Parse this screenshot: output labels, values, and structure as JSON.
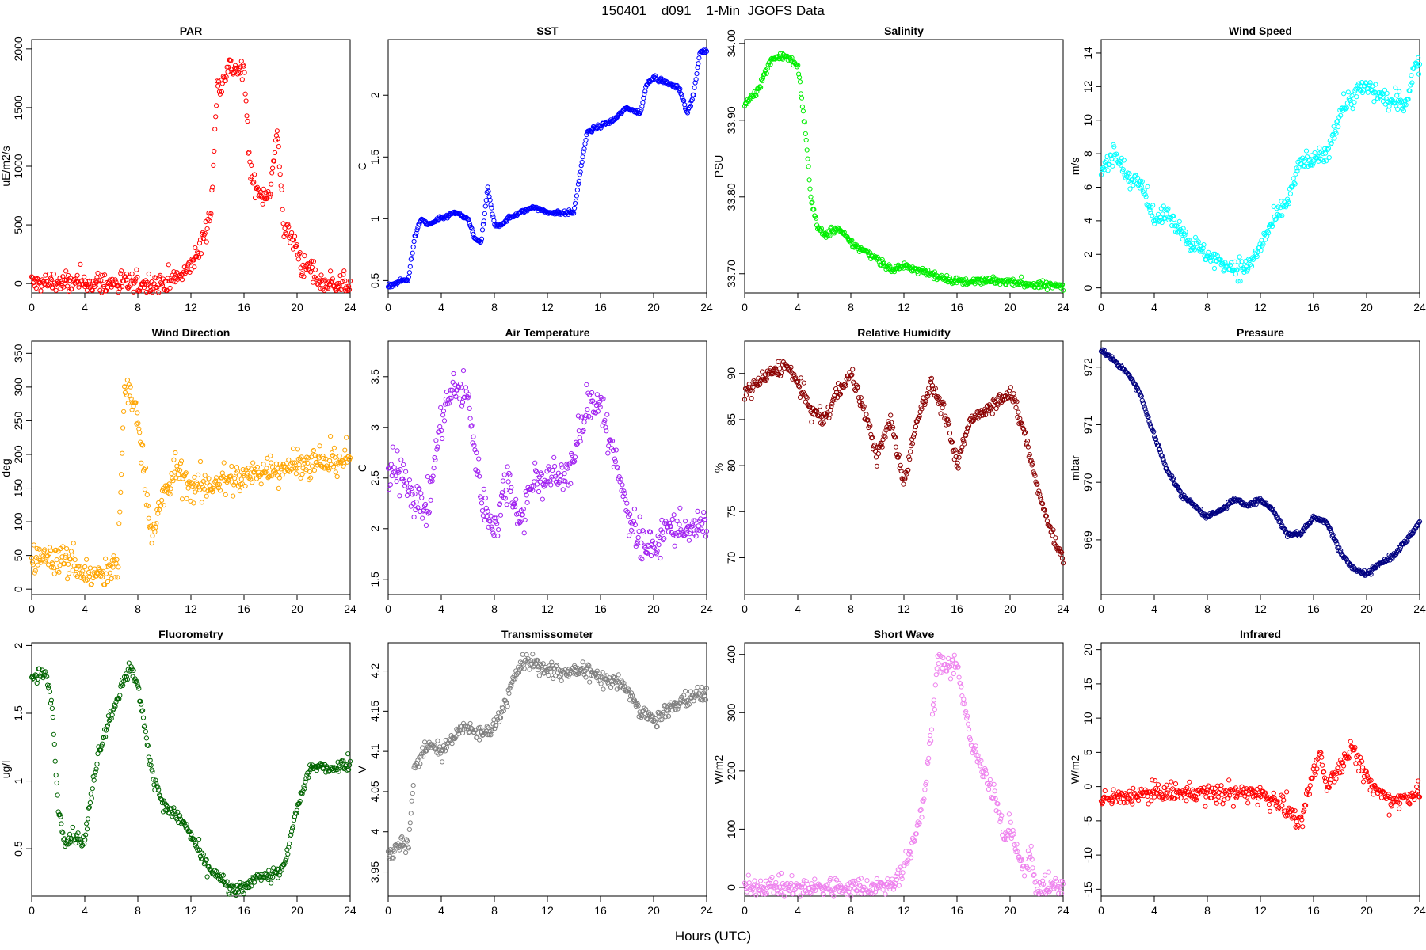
{
  "figure": {
    "title": "150401    d091    1-Min  JGOFS Data",
    "xlabel": "Hours (UTC)"
  },
  "chart_data": [
    {
      "type": "scatter",
      "title": "PAR",
      "ylabel": "uE/m2/s",
      "color": "#ff0000",
      "xlim": [
        0,
        24
      ],
      "xticks": [
        0,
        4,
        8,
        12,
        16,
        20,
        24
      ],
      "ylim": [
        -80,
        2080
      ],
      "yticks": [
        0,
        500,
        1000,
        1500,
        2000
      ],
      "grid": false,
      "series": [
        {
          "spread": 250,
          "x": [
            0,
            10,
            10.5,
            11.5,
            12.5,
            13.5,
            14,
            15,
            16,
            16.5,
            17,
            17.5,
            18,
            18.5,
            19,
            19.5,
            20,
            20.5,
            21,
            21.5,
            22,
            24
          ],
          "y": [
            0,
            0,
            20,
            80,
            250,
            600,
            1700,
            1850,
            1800,
            900,
            800,
            750,
            800,
            1300,
            500,
            400,
            300,
            100,
            150,
            20,
            0,
            0
          ]
        }
      ]
    },
    {
      "type": "scatter",
      "title": "SST",
      "ylabel": "C",
      "color": "#0000ff",
      "xlim": [
        0,
        24
      ],
      "xticks": [
        0,
        4,
        8,
        12,
        16,
        20,
        24
      ],
      "ylim": [
        0.4,
        2.45
      ],
      "yticks": [
        0.5,
        1.0,
        1.5,
        2.0
      ],
      "grid": false,
      "series": [
        {
          "spread": 0.04,
          "x": [
            0,
            1,
            1.5,
            2,
            2.5,
            3,
            4,
            5,
            6,
            6.5,
            7,
            7.5,
            8,
            8.5,
            9,
            10,
            11,
            12,
            13,
            14,
            14.5,
            15,
            16,
            17,
            18,
            19,
            19.5,
            20,
            21,
            22,
            22.5,
            23,
            23.5,
            24
          ],
          "y": [
            0.45,
            0.5,
            0.5,
            0.85,
            1.0,
            0.95,
            1.0,
            1.05,
            1.0,
            0.85,
            0.8,
            1.25,
            0.95,
            0.95,
            1.0,
            1.05,
            1.1,
            1.05,
            1.05,
            1.05,
            1.4,
            1.7,
            1.75,
            1.8,
            1.9,
            1.85,
            2.1,
            2.15,
            2.1,
            2.05,
            1.85,
            2.0,
            2.35,
            2.35
          ]
        }
      ]
    },
    {
      "type": "scatter",
      "title": "Salinity",
      "ylabel": "PSU",
      "color": "#00ee00",
      "xlim": [
        0,
        24
      ],
      "xticks": [
        0,
        4,
        8,
        12,
        16,
        20,
        24
      ],
      "ylim": [
        33.675,
        34.005
      ],
      "yticks": [
        33.7,
        33.8,
        33.9,
        34.0
      ],
      "ytick_labels": [
        "33.70",
        "33.80",
        "33.90",
        "34.00"
      ],
      "grid": false,
      "series": [
        {
          "spread": 0.012,
          "x": [
            0,
            1,
            2,
            3,
            4,
            4.5,
            5,
            5.5,
            6,
            7,
            8,
            9,
            10,
            11,
            12,
            14,
            16,
            18,
            20,
            22,
            24
          ],
          "y": [
            33.92,
            33.94,
            33.98,
            33.985,
            33.97,
            33.9,
            33.8,
            33.76,
            33.75,
            33.76,
            33.74,
            33.73,
            33.72,
            33.705,
            33.71,
            33.7,
            33.69,
            33.69,
            33.69,
            33.685,
            33.685
          ]
        }
      ]
    },
    {
      "type": "scatter",
      "title": "Wind Speed",
      "ylabel": "m/s",
      "color": "#00ffff",
      "xlim": [
        0,
        24
      ],
      "xticks": [
        0,
        4,
        8,
        12,
        16,
        20,
        24
      ],
      "ylim": [
        -0.3,
        14.8
      ],
      "yticks": [
        0,
        2,
        4,
        6,
        8,
        10,
        12,
        14
      ],
      "grid": false,
      "series": [
        {
          "spread": 1.4,
          "x": [
            0,
            1,
            2,
            3,
            4,
            5,
            6,
            7,
            8,
            9,
            10,
            11,
            12,
            13,
            14,
            15,
            16,
            17,
            18,
            19,
            20,
            21,
            22,
            23,
            23.5,
            24
          ],
          "y": [
            7,
            8,
            6.5,
            6.5,
            4,
            4.5,
            3.5,
            2.5,
            2,
            1.5,
            1.2,
            1.2,
            2.5,
            4,
            5,
            7.5,
            7.5,
            8,
            10.5,
            11.5,
            12,
            11.5,
            11,
            11,
            13,
            13.5
          ]
        }
      ]
    },
    {
      "type": "scatter",
      "title": "Wind Direction",
      "ylabel": "deg",
      "color": "#ffa500",
      "xlim": [
        0,
        24
      ],
      "xticks": [
        0,
        4,
        8,
        12,
        16,
        20,
        24
      ],
      "ylim": [
        -8,
        368
      ],
      "yticks": [
        0,
        50,
        100,
        150,
        200,
        250,
        300,
        350
      ],
      "grid": false,
      "series": [
        {
          "spread": 60,
          "x": [
            0,
            1,
            2,
            3,
            4,
            5,
            6,
            6.5,
            7,
            8,
            9,
            10,
            11,
            12,
            13,
            14,
            16,
            18,
            20,
            22,
            24
          ],
          "y": [
            40,
            50,
            40,
            45,
            20,
            20,
            25,
            40,
            300,
            260,
            80,
            140,
            180,
            150,
            150,
            160,
            165,
            180,
            185,
            188,
            195
          ]
        }
      ]
    },
    {
      "type": "scatter",
      "title": "Air Temperature",
      "ylabel": "C",
      "color": "#a020f0",
      "xlim": [
        0,
        24
      ],
      "xticks": [
        0,
        4,
        8,
        12,
        16,
        20,
        24
      ],
      "ylim": [
        1.35,
        3.85
      ],
      "yticks": [
        1.5,
        2.0,
        2.5,
        3.0,
        3.5
      ],
      "grid": false,
      "series": [
        {
          "spread": 0.45,
          "x": [
            0,
            1,
            2,
            3,
            4,
            5,
            6,
            7,
            8,
            9,
            10,
            11,
            12,
            13,
            14,
            15,
            16,
            17,
            18,
            19,
            20,
            21,
            22,
            23,
            24
          ],
          "y": [
            2.5,
            2.6,
            2.3,
            2.2,
            3.1,
            3.4,
            3.3,
            2.3,
            2.0,
            2.5,
            2.1,
            2.5,
            2.5,
            2.5,
            2.7,
            3.2,
            3.3,
            2.7,
            2.2,
            1.9,
            1.8,
            2.0,
            2.0,
            2.0,
            2.0
          ]
        }
      ]
    },
    {
      "type": "scatter",
      "title": "Relative Humidity",
      "ylabel": "%",
      "color": "#8b0000",
      "xlim": [
        0,
        24
      ],
      "xticks": [
        0,
        4,
        8,
        12,
        16,
        20,
        24
      ],
      "ylim": [
        66,
        93.5
      ],
      "yticks": [
        70,
        75,
        80,
        85,
        90
      ],
      "grid": false,
      "series": [
        {
          "spread": 2,
          "x": [
            0,
            1,
            2,
            3,
            4,
            5,
            6,
            7,
            8,
            9,
            10,
            11,
            12,
            13,
            14,
            15,
            16,
            17,
            18,
            19,
            20,
            21,
            22,
            23,
            24
          ],
          "y": [
            88,
            89,
            90,
            91,
            89,
            86,
            85,
            88,
            90,
            86,
            81,
            85,
            78,
            85,
            89,
            86,
            80,
            85,
            86,
            87,
            88,
            84,
            78,
            73,
            70
          ]
        }
      ]
    },
    {
      "type": "scatter",
      "title": "Pressure",
      "ylabel": "mbar",
      "color": "#000080",
      "xlim": [
        0,
        24
      ],
      "xticks": [
        0,
        4,
        8,
        12,
        16,
        20,
        24
      ],
      "ylim": [
        968.05,
        972.45
      ],
      "yticks": [
        969,
        970,
        971,
        972
      ],
      "grid": false,
      "series": [
        {
          "spread": 0.1,
          "x": [
            0,
            1,
            2,
            3,
            4,
            5,
            6,
            7,
            8,
            9,
            10,
            11,
            12,
            13,
            14,
            15,
            16,
            17,
            18,
            19,
            20,
            21,
            22,
            23,
            24
          ],
          "y": [
            972.3,
            972.1,
            971.9,
            971.5,
            970.8,
            970.2,
            969.8,
            969.6,
            969.4,
            969.5,
            969.7,
            969.6,
            969.7,
            969.5,
            969.1,
            969.1,
            969.4,
            969.3,
            968.8,
            968.5,
            968.4,
            968.6,
            968.7,
            969.0,
            969.3
          ]
        }
      ]
    },
    {
      "type": "scatter",
      "title": "Fluorometry",
      "ylabel": "ug/l",
      "color": "#006400",
      "xlim": [
        0,
        24
      ],
      "xticks": [
        0,
        4,
        8,
        12,
        16,
        20,
        24
      ],
      "ylim": [
        0.15,
        2.02
      ],
      "yticks": [
        0.5,
        1.0,
        1.5,
        2.0
      ],
      "grid": false,
      "series": [
        {
          "spread": 0.12,
          "x": [
            0,
            1,
            1.5,
            2,
            2.5,
            3,
            4,
            4.5,
            5,
            6,
            7,
            7.5,
            8,
            9,
            10,
            11,
            12,
            13,
            14,
            15,
            16,
            17,
            18,
            19,
            20,
            21,
            22,
            23,
            24
          ],
          "y": [
            1.75,
            1.8,
            1.6,
            0.8,
            0.55,
            0.6,
            0.55,
            0.9,
            1.2,
            1.5,
            1.75,
            1.85,
            1.7,
            1.1,
            0.8,
            0.75,
            0.6,
            0.4,
            0.3,
            0.2,
            0.2,
            0.3,
            0.3,
            0.35,
            0.8,
            1.1,
            1.1,
            1.1,
            1.15
          ]
        }
      ]
    },
    {
      "type": "scatter",
      "title": "Transmissometer",
      "ylabel": "V",
      "color": "#808080",
      "xlim": [
        0,
        24
      ],
      "xticks": [
        0,
        4,
        8,
        12,
        16,
        20,
        24
      ],
      "ylim": [
        3.92,
        4.235
      ],
      "yticks": [
        3.95,
        4.0,
        4.05,
        4.1,
        4.15,
        4.2
      ],
      "grid": false,
      "series": [
        {
          "spread": 0.025,
          "x": [
            0,
            1,
            1.5,
            2,
            3,
            4,
            5,
            6,
            7,
            8,
            9,
            10,
            11,
            12,
            13,
            14,
            15,
            16,
            17,
            18,
            19,
            20,
            21,
            22,
            23,
            24
          ],
          "y": [
            3.97,
            3.99,
            3.98,
            4.08,
            4.11,
            4.1,
            4.12,
            4.13,
            4.12,
            4.13,
            4.17,
            4.21,
            4.21,
            4.2,
            4.2,
            4.2,
            4.2,
            4.19,
            4.19,
            4.18,
            4.15,
            4.14,
            4.15,
            4.16,
            4.17,
            4.17
          ]
        }
      ]
    },
    {
      "type": "scatter",
      "title": "Short Wave",
      "ylabel": "W/m2",
      "color": "#ee82ee",
      "xlim": [
        0,
        24
      ],
      "xticks": [
        0,
        4,
        8,
        12,
        16,
        20,
        24
      ],
      "ylim": [
        -15,
        420
      ],
      "yticks": [
        0,
        100,
        200,
        300,
        400
      ],
      "grid": false,
      "series": [
        {
          "spread": 45,
          "x": [
            0,
            10,
            11,
            12,
            13,
            13.5,
            14,
            14.5,
            15,
            16,
            17,
            18,
            19,
            19.5,
            20,
            20.5,
            21,
            21.5,
            22,
            24
          ],
          "y": [
            0,
            0,
            5,
            30,
            100,
            150,
            250,
            380,
            380,
            385,
            250,
            200,
            150,
            80,
            110,
            60,
            30,
            60,
            2,
            0
          ]
        }
      ]
    },
    {
      "type": "scatter",
      "title": "Infrared",
      "ylabel": "W/m2",
      "color": "#ff0000",
      "xlim": [
        0,
        24
      ],
      "xticks": [
        0,
        4,
        8,
        12,
        16,
        20,
        24
      ],
      "ylim": [
        -16,
        21
      ],
      "yticks": [
        -15,
        -10,
        -5,
        0,
        5,
        10,
        15,
        20
      ],
      "grid": false,
      "series": [
        {
          "spread": 3.5,
          "x": [
            0,
            2,
            4,
            6,
            8,
            10,
            12,
            13,
            14,
            15,
            16,
            16.5,
            17,
            18,
            19,
            20,
            21,
            22,
            24
          ],
          "y": [
            -2,
            -1.5,
            -1,
            -1,
            -1,
            -1,
            -1,
            -2,
            -3,
            -6,
            2,
            5,
            0,
            3,
            6,
            1,
            -1,
            -2,
            -1
          ]
        }
      ]
    }
  ]
}
